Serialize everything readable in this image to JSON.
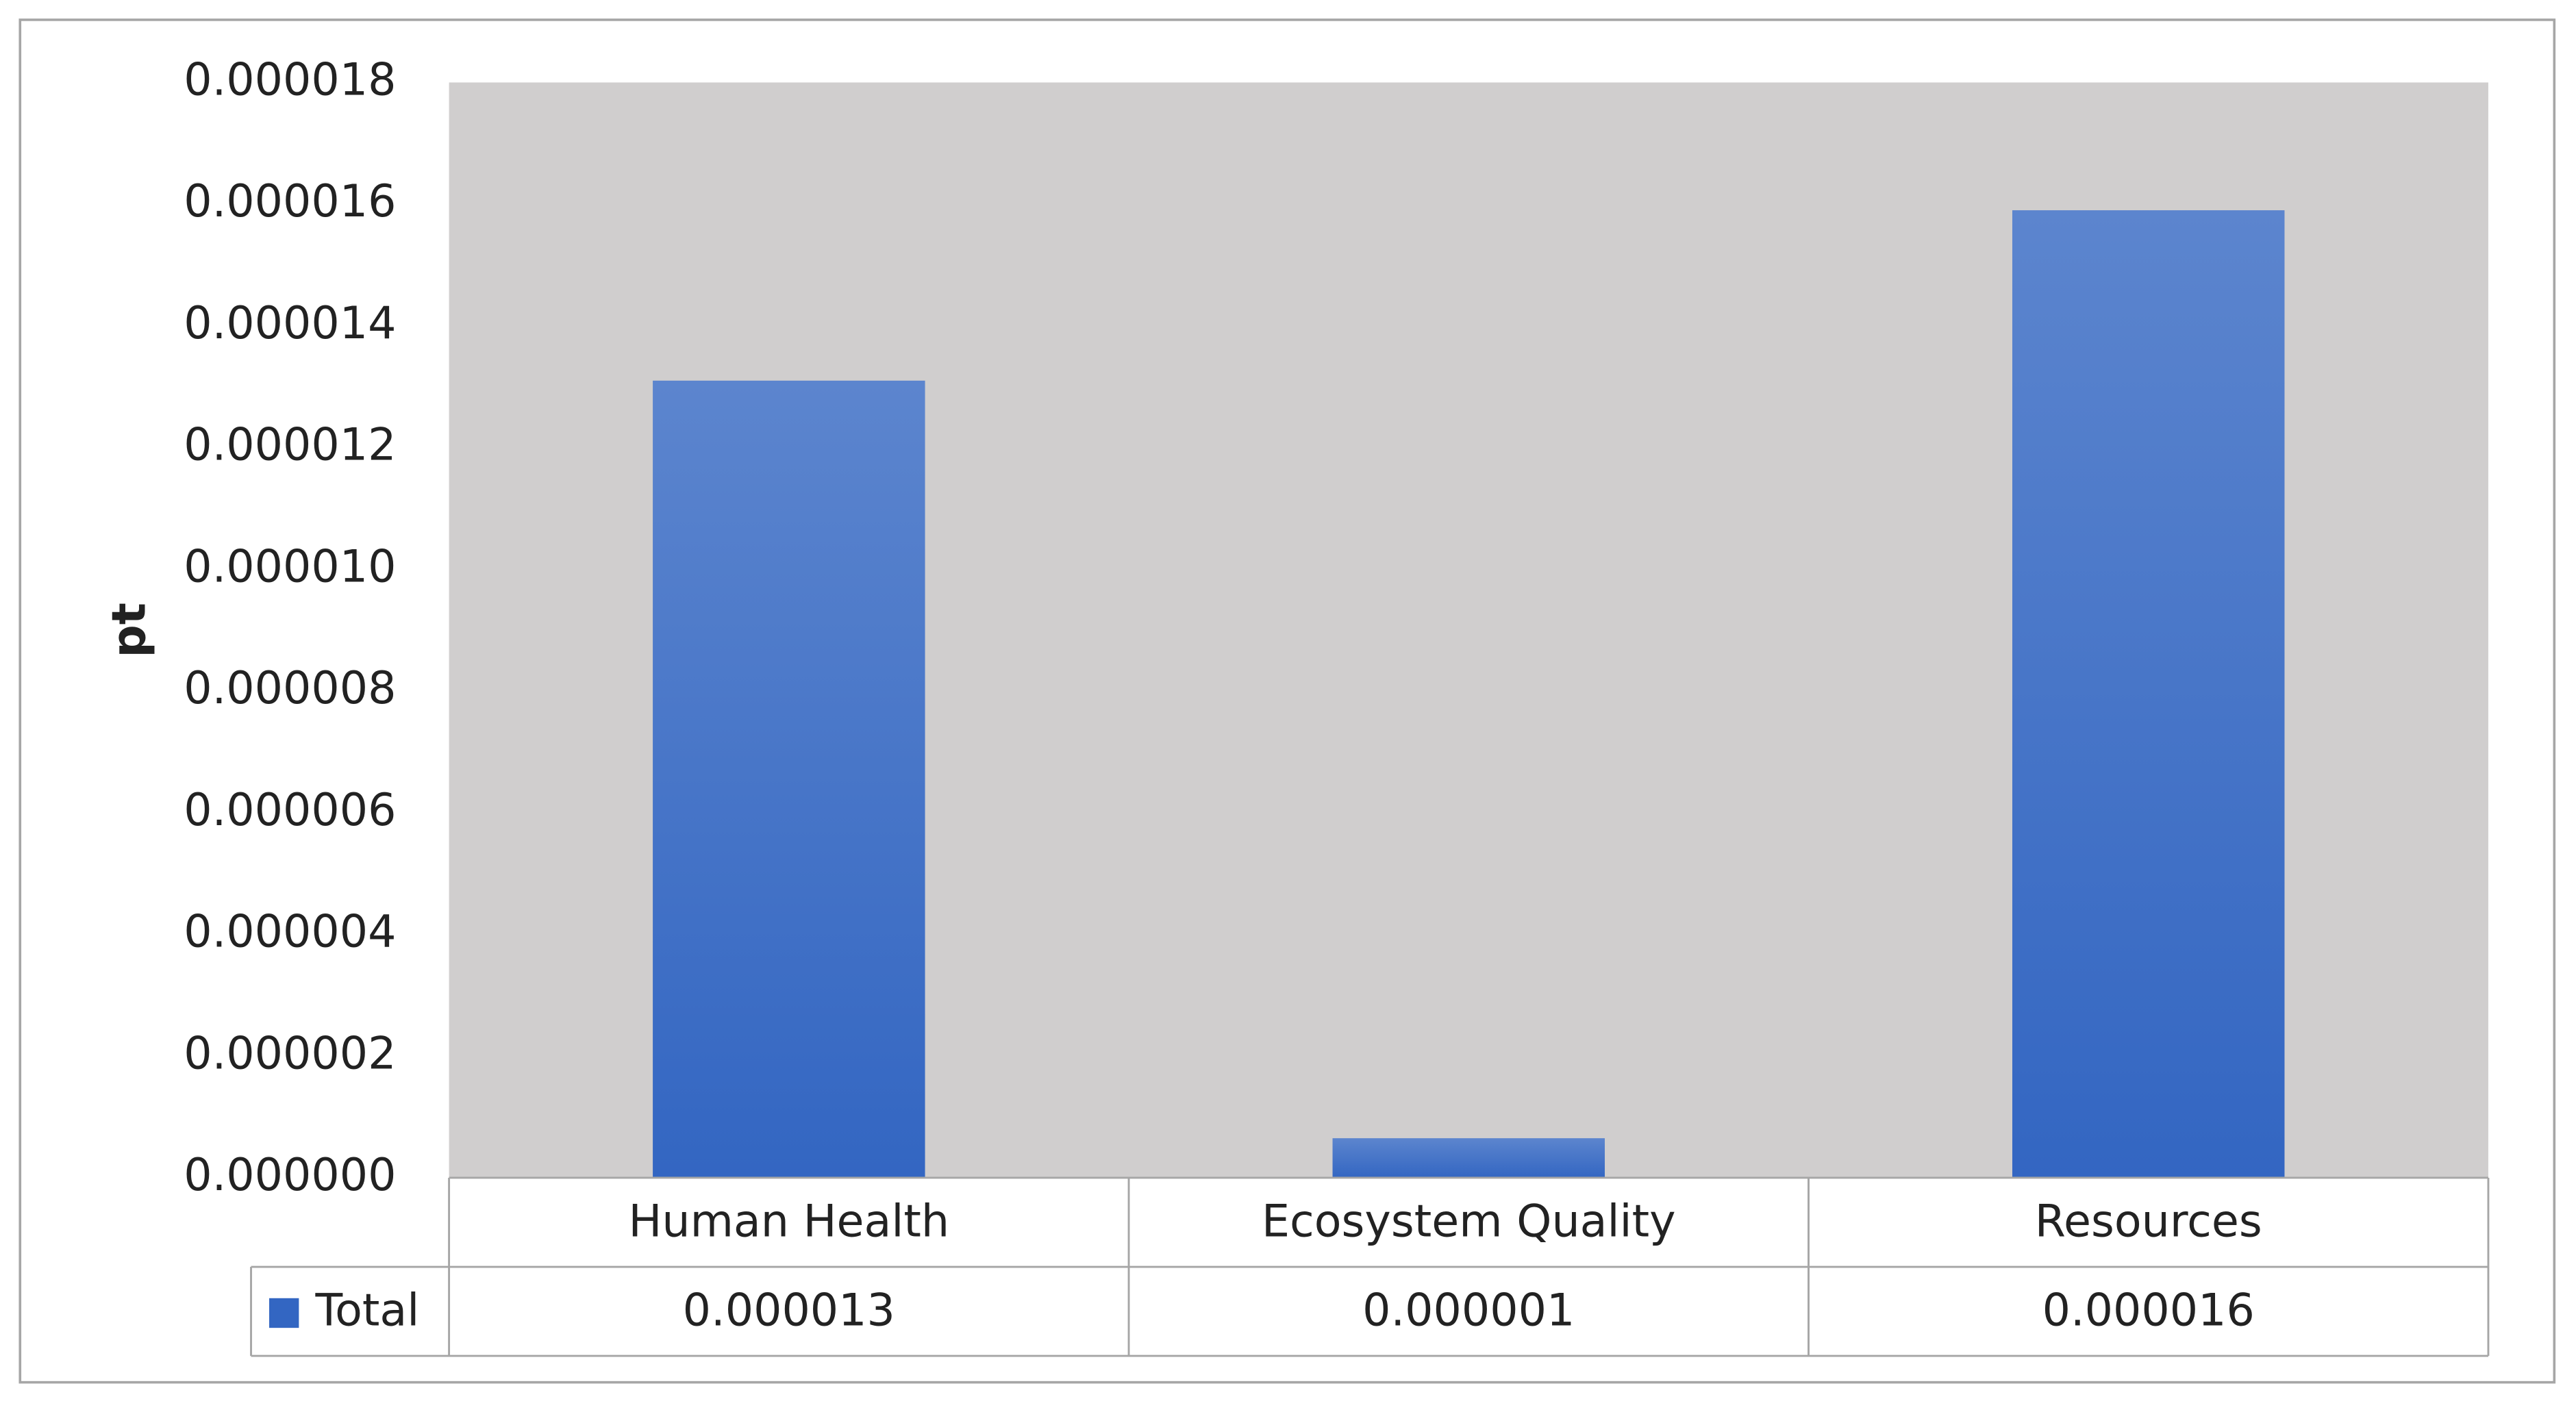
{
  "chart_data": {
    "type": "bar",
    "y_label": "pt",
    "categories": [
      "Human Health",
      "Ecosystem Quality",
      "Resources"
    ],
    "series": [
      {
        "name": "Total",
        "color": "#3366c2",
        "values": [
          1.31e-05,
          6.5e-07,
          1.59e-05
        ],
        "value_labels": [
          "0.000013",
          "0.000001",
          "0.000016"
        ]
      }
    ],
    "ylim": [
      0,
      1.8e-05
    ],
    "yticks": [
      {
        "value": 0,
        "label": "0.000000"
      },
      {
        "value": 2e-06,
        "label": "0.000002"
      },
      {
        "value": 4e-06,
        "label": "0.000004"
      },
      {
        "value": 6e-06,
        "label": "0.000006"
      },
      {
        "value": 8e-06,
        "label": "0.000008"
      },
      {
        "value": 1e-05,
        "label": "0.000010"
      },
      {
        "value": 1.2e-05,
        "label": "0.000012"
      },
      {
        "value": 1.4e-05,
        "label": "0.000014"
      },
      {
        "value": 1.6e-05,
        "label": "0.000016"
      },
      {
        "value": 1.8e-05,
        "label": "0.000018"
      }
    ],
    "plot_background": "#d0cece",
    "data_table": true
  }
}
